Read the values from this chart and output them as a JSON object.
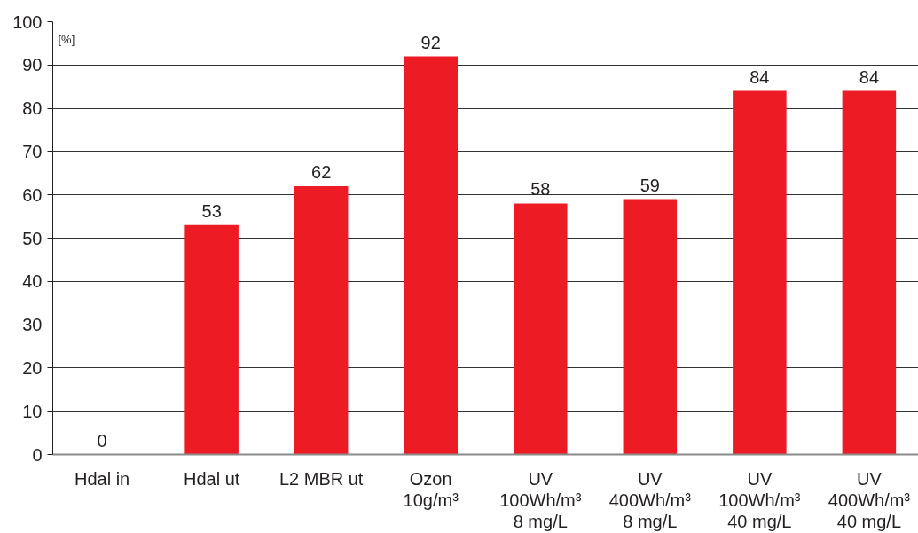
{
  "chart_data": {
    "type": "bar",
    "ylabel": "[%]",
    "categories": [
      "Hdal in",
      "Hdal ut",
      "L2 MBR ut",
      "Ozon\n10g/m³",
      "UV\n100Wh/m³\n8 mg/L",
      "UV\n400Wh/m³\n8 mg/L",
      "UV\n100Wh/m³\n40 mg/L",
      "UV\n400Wh/m³\n40 mg/L"
    ],
    "values": [
      0,
      53,
      62,
      92,
      58,
      59,
      84,
      84
    ],
    "color": "#ed1c24",
    "ylim": [
      0,
      100
    ],
    "yticks": [
      0,
      10,
      20,
      30,
      40,
      50,
      60,
      70,
      80,
      90,
      100
    ],
    "grid": "y",
    "data_labels": true
  }
}
